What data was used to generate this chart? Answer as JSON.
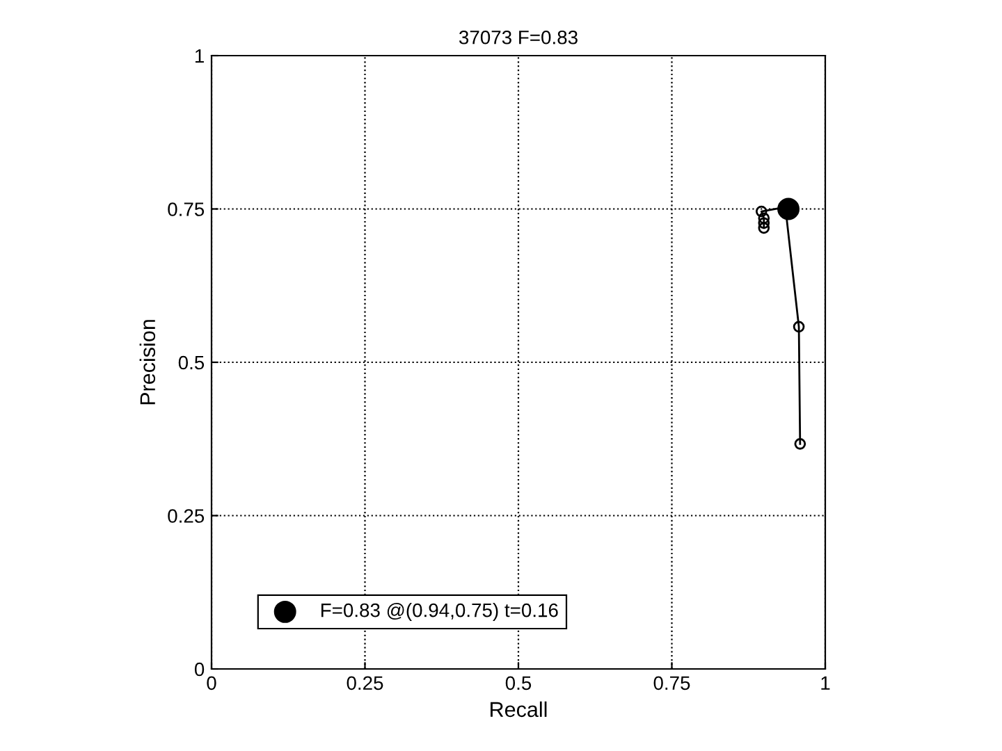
{
  "chart_data": {
    "type": "line",
    "title": "37073 F=0.83",
    "xlabel": "Recall",
    "ylabel": "Precision",
    "series": [
      {
        "color": "#000000",
        "marker": "circle",
        "x": [
          0.959,
          0.957,
          0.935,
          0.896,
          0.9,
          0.9,
          0.9
        ],
        "values": [
          0.367,
          0.558,
          0.753,
          0.746,
          0.735,
          0.727,
          0.719
        ]
      },
      {
        "type": "scatter",
        "name": "F=0.83 @(0.94,0.75) t=0.16",
        "color": "#000000",
        "marker": "circle",
        "x": [
          0.94
        ],
        "values": [
          0.75
        ]
      }
    ],
    "xlim": [
      0,
      1
    ],
    "ylim": [
      0,
      1
    ],
    "xticks": [
      0,
      0.25,
      0.5,
      0.75,
      1
    ],
    "yticks": [
      0,
      0.25,
      0.5,
      0.75,
      1
    ],
    "grid": true,
    "legend": "bottom left"
  }
}
